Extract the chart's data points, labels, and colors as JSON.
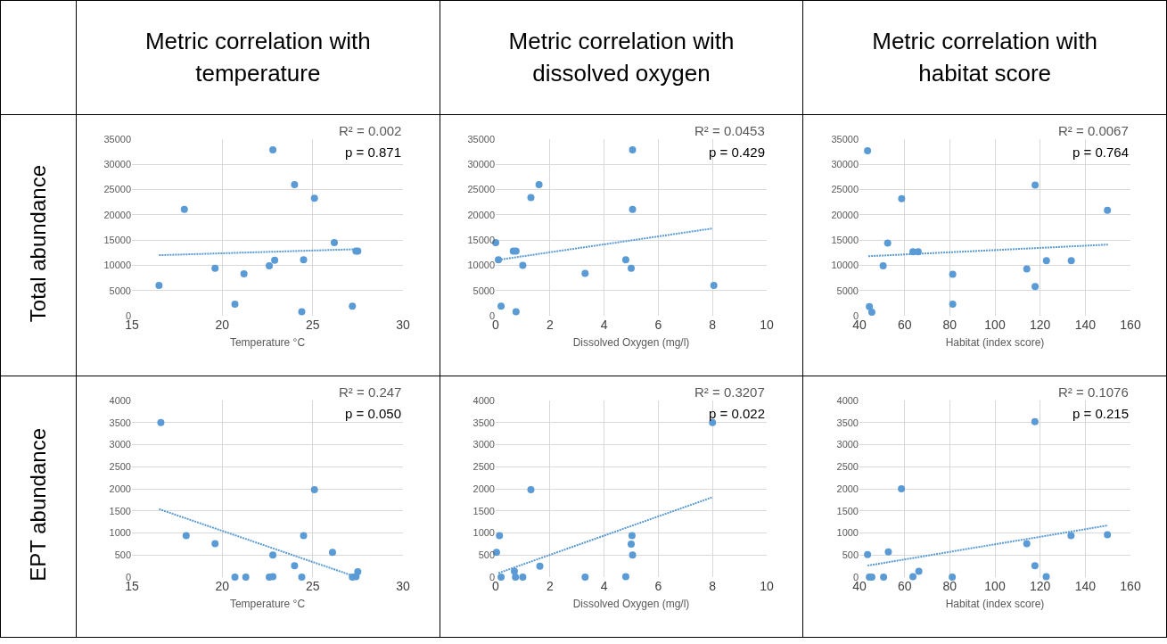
{
  "chart_data": [
    {
      "type": "scatter",
      "title": "Metric correlation with temperature",
      "ylabel": "Total abundance",
      "xlabel": "Temperature °C",
      "xlim": [
        15,
        30
      ],
      "xticks": [
        15,
        20,
        25,
        30
      ],
      "ylim": [
        0,
        35000
      ],
      "yticks": [
        0,
        5000,
        10000,
        15000,
        20000,
        25000,
        30000,
        35000
      ],
      "grid": true,
      "annotations": [
        "R² = 0.002",
        "p = 0.871"
      ],
      "series": [
        {
          "marker": "circle",
          "color": "#5b9bd5",
          "x": [
            16.5,
            17.9,
            19.6,
            20.7,
            21.2,
            22.6,
            22.9,
            22.8,
            24.0,
            24.5,
            24.4,
            25.1,
            26.2,
            27.2,
            27.4,
            27.5
          ],
          "values": [
            6000,
            21100,
            9400,
            2300,
            8300,
            9900,
            11000,
            32900,
            26000,
            11100,
            800,
            23300,
            14500,
            1900,
            12800,
            12800
          ]
        },
        {
          "type": "line",
          "line_style": "dotted",
          "color": "#5b9bd5",
          "x": [
            16.5,
            27.5
          ],
          "values": [
            12000,
            13200
          ]
        }
      ]
    },
    {
      "type": "scatter",
      "title": "Metric correlation with dissolved oxygen",
      "xlabel": "Dissolved Oxygen (mg/l)",
      "xlim": [
        0,
        10
      ],
      "xticks": [
        0,
        2,
        4,
        6,
        8,
        10
      ],
      "ylim": [
        0,
        35000
      ],
      "yticks": [
        0,
        5000,
        10000,
        15000,
        20000,
        25000,
        30000,
        35000
      ],
      "grid": true,
      "annotations": [
        "R² = 0.0453",
        "p = 0.429"
      ],
      "series": [
        {
          "marker": "circle",
          "color": "#5b9bd5",
          "x": [
            0.0,
            0.1,
            0.2,
            0.65,
            0.75,
            0.75,
            1.0,
            1.3,
            1.6,
            3.3,
            4.8,
            5.0,
            5.05,
            5.05,
            8.05
          ],
          "values": [
            14500,
            11100,
            1900,
            12800,
            12800,
            800,
            10000,
            23400,
            26000,
            8400,
            11100,
            9400,
            32900,
            21100,
            6000
          ]
        },
        {
          "type": "line",
          "line_style": "dotted",
          "color": "#5b9bd5",
          "x": [
            0,
            8
          ],
          "values": [
            11000,
            17300
          ]
        }
      ]
    },
    {
      "type": "scatter",
      "title": "Metric correlation with habitat score",
      "xlabel": "Habitat (index score)",
      "xlim": [
        40,
        160
      ],
      "xticks": [
        40,
        60,
        80,
        100,
        120,
        140,
        160
      ],
      "ylim": [
        0,
        35000
      ],
      "yticks": [
        0,
        5000,
        10000,
        15000,
        20000,
        25000,
        30000,
        35000
      ],
      "grid": true,
      "annotations": [
        "R² = 0.0067",
        "p = 0.764"
      ],
      "series": [
        {
          "marker": "circle",
          "color": "#5b9bd5",
          "x": [
            43.6,
            44.4,
            45.5,
            50.5,
            52.5,
            58.7,
            63.7,
            66,
            81.3,
            81.3,
            114.1,
            117.8,
            117.8,
            122.8,
            133.8,
            149.8
          ],
          "values": [
            32700,
            1800,
            700,
            9900,
            14400,
            23200,
            12700,
            12700,
            8200,
            2300,
            9300,
            25900,
            5800,
            10900,
            10900,
            20900
          ]
        },
        {
          "type": "line",
          "line_style": "dotted",
          "color": "#5b9bd5",
          "x": [
            44,
            150
          ],
          "values": [
            11800,
            14100
          ]
        }
      ]
    },
    {
      "type": "scatter",
      "ylabel": "EPT abundance",
      "xlabel": "Temperature °C",
      "xlim": [
        15,
        30
      ],
      "xticks": [
        15,
        20,
        25,
        30
      ],
      "ylim": [
        0,
        4000
      ],
      "yticks": [
        0,
        500,
        1000,
        1500,
        2000,
        2500,
        3000,
        3500,
        4000
      ],
      "grid": true,
      "annotations": [
        "R² = 0.247",
        "p = 0.050"
      ],
      "series": [
        {
          "marker": "circle",
          "color": "#5b9bd5",
          "x": [
            16.6,
            18.0,
            19.6,
            20.7,
            21.3,
            22.6,
            22.8,
            22.8,
            24.0,
            24.5,
            24.4,
            25.1,
            26.1,
            27.2,
            27.4,
            27.5
          ],
          "values": [
            3500,
            940,
            760,
            0,
            0,
            0,
            10,
            500,
            260,
            940,
            0,
            1980,
            560,
            0,
            10,
            120
          ]
        },
        {
          "type": "line",
          "line_style": "dotted",
          "color": "#5b9bd5",
          "x": [
            16.5,
            27.3
          ],
          "values": [
            1540,
            20
          ]
        }
      ]
    },
    {
      "type": "scatter",
      "xlabel": "Dissolved Oxygen (mg/l)",
      "xlim": [
        0,
        10
      ],
      "xticks": [
        0,
        2,
        4,
        6,
        8,
        10
      ],
      "ylim": [
        0,
        4000
      ],
      "yticks": [
        0,
        500,
        1000,
        1500,
        2000,
        2500,
        3000,
        3500,
        4000
      ],
      "grid": true,
      "annotations": [
        "R² = 0.3207",
        "p = 0.022"
      ],
      "series": [
        {
          "marker": "circle",
          "color": "#5b9bd5",
          "x": [
            0.03,
            0.14,
            0.2,
            0.69,
            0.73,
            1.0,
            1.3,
            1.63,
            3.3,
            4.8,
            5.0,
            5.03,
            5.05,
            8.0
          ],
          "values": [
            560,
            940,
            0,
            130,
            0,
            0,
            1980,
            250,
            0,
            10,
            750,
            940,
            500,
            3500
          ]
        },
        {
          "type": "line",
          "line_style": "dotted",
          "color": "#5b9bd5",
          "x": [
            0.1,
            8
          ],
          "values": [
            90,
            1810
          ]
        }
      ]
    },
    {
      "type": "scatter",
      "xlabel": "Habitat (index score)",
      "xlim": [
        40,
        160
      ],
      "xticks": [
        40,
        60,
        80,
        100,
        120,
        140,
        160
      ],
      "ylim": [
        0,
        4000
      ],
      "yticks": [
        0,
        500,
        1000,
        1500,
        2000,
        2500,
        3000,
        3500,
        4000
      ],
      "grid": true,
      "annotations": [
        "R² = 0.1076",
        "p = 0.215"
      ],
      "series": [
        {
          "marker": "circle",
          "color": "#5b9bd5",
          "x": [
            43.6,
            44.4,
            45.5,
            50.7,
            52.8,
            58.6,
            63.7,
            66.3,
            81.1,
            114.1,
            117.7,
            117.7,
            122.7,
            133.7,
            149.8
          ],
          "values": [
            510,
            0,
            0,
            0,
            570,
            2000,
            10,
            130,
            0,
            760,
            3520,
            260,
            10,
            940,
            960
          ]
        },
        {
          "type": "line",
          "line_style": "dotted",
          "color": "#5b9bd5",
          "x": [
            43.6,
            150
          ],
          "values": [
            260,
            1170
          ]
        }
      ]
    }
  ]
}
